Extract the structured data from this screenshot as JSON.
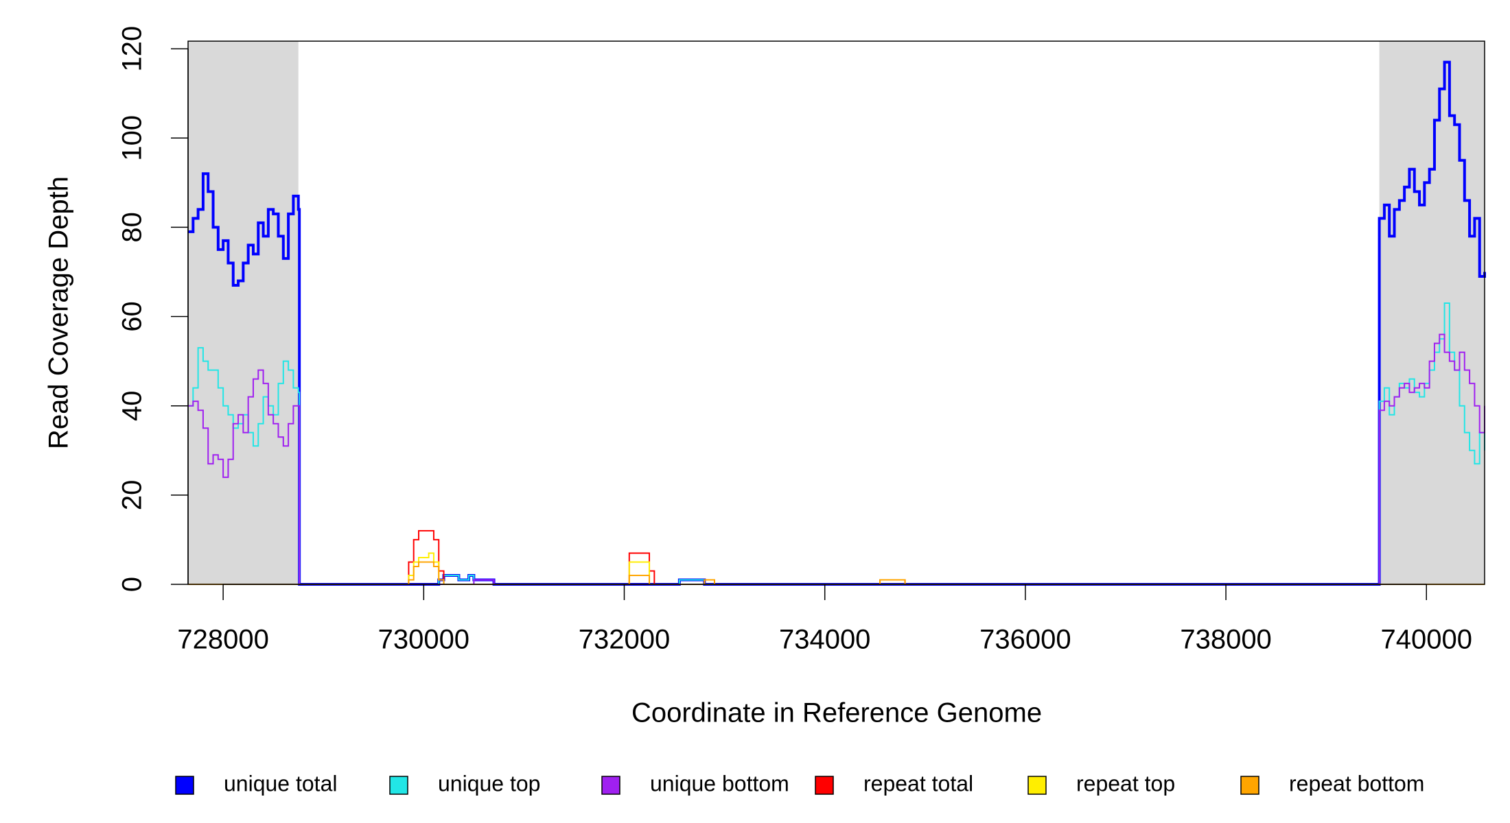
{
  "chart_data": {
    "type": "line",
    "step": "post",
    "x_label": "Coordinate in Reference Genome",
    "y_label": "Read Coverage Depth",
    "xlim": [
      727650,
      740580
    ],
    "ylim": [
      0,
      121.7
    ],
    "xticks": [
      728000,
      730000,
      732000,
      734000,
      736000,
      738000,
      740000
    ],
    "yticks": [
      0,
      20,
      40,
      60,
      80,
      100,
      120
    ],
    "shaded_regions": [
      [
        727650,
        728750
      ],
      [
        739530,
        740580
      ]
    ],
    "shade_color": "#d9d9d9",
    "legend": "bottom",
    "x": [
      727650,
      727700,
      727750,
      727800,
      727850,
      727900,
      727950,
      728000,
      728050,
      728100,
      728150,
      728200,
      728250,
      728300,
      728350,
      728400,
      728450,
      728500,
      728550,
      728600,
      728650,
      728700,
      728750,
      728760,
      729800,
      729850,
      729900,
      729950,
      730050,
      730100,
      730150,
      730200,
      730350,
      730450,
      730500,
      730700,
      732000,
      732050,
      732250,
      732300,
      732550,
      732800,
      732900,
      734550,
      734800,
      739520,
      739530,
      739580,
      739630,
      739680,
      739730,
      739780,
      739830,
      739880,
      739930,
      739980,
      740030,
      740080,
      740130,
      740180,
      740230,
      740280,
      740330,
      740380,
      740430,
      740480,
      740530,
      740580
    ],
    "series": [
      {
        "name": "unique total",
        "color": "#0000ff",
        "values": [
          79,
          82,
          84,
          92,
          88,
          80,
          75,
          77,
          72,
          67,
          68,
          72,
          76,
          74,
          81,
          78,
          84,
          83,
          78,
          73,
          83,
          87,
          84,
          0,
          0,
          0,
          0,
          0,
          0,
          0,
          1,
          2,
          1,
          2,
          1,
          0,
          0,
          0,
          0,
          0,
          1,
          0,
          0,
          0,
          0,
          0,
          82,
          85,
          78,
          84,
          86,
          89,
          93,
          88,
          85,
          90,
          93,
          104,
          111,
          117,
          105,
          103,
          95,
          86,
          78,
          82,
          69,
          70
        ]
      },
      {
        "name": "unique top",
        "color": "#22e6e6",
        "values": [
          40,
          44,
          53,
          50,
          48,
          48,
          44,
          40,
          38,
          35,
          36,
          38,
          34,
          31,
          36,
          42,
          40,
          38,
          45,
          50,
          48,
          44,
          43,
          0,
          0,
          0,
          0,
          0,
          0,
          0,
          1,
          2,
          1,
          2,
          0,
          0,
          0,
          0,
          0,
          0,
          1,
          0,
          0,
          0,
          0,
          0,
          41,
          44,
          38,
          42,
          45,
          44,
          46,
          43,
          42,
          45,
          48,
          52,
          55,
          63,
          52,
          48,
          40,
          34,
          30,
          27,
          34,
          30
        ]
      },
      {
        "name": "unique bottom",
        "color": "#a020f0",
        "values": [
          40,
          41,
          39,
          35,
          27,
          29,
          28,
          24,
          28,
          36,
          38,
          34,
          42,
          46,
          48,
          45,
          38,
          36,
          33,
          31,
          36,
          40,
          40,
          0,
          0,
          0,
          0,
          0,
          0,
          0,
          0,
          0,
          0,
          0,
          1,
          0,
          0,
          0,
          0,
          0,
          0,
          0,
          0,
          0,
          0,
          0,
          39,
          41,
          40,
          42,
          44,
          45,
          43,
          44,
          45,
          44,
          50,
          54,
          56,
          52,
          50,
          48,
          52,
          48,
          45,
          40,
          34,
          40
        ]
      },
      {
        "name": "repeat total",
        "color": "#ff0000",
        "values": [
          0,
          0,
          0,
          0,
          0,
          0,
          0,
          0,
          0,
          0,
          0,
          0,
          0,
          0,
          0,
          0,
          0,
          0,
          0,
          0,
          0,
          0,
          0,
          0,
          0,
          5,
          10,
          12,
          12,
          10,
          3,
          0,
          0,
          0,
          0,
          0,
          0,
          7,
          3,
          0,
          0,
          1,
          0,
          1,
          0,
          0,
          0,
          0,
          0,
          0,
          0,
          0,
          0,
          0,
          0,
          0,
          0,
          0,
          0,
          0,
          0,
          0,
          0,
          0,
          0,
          0,
          0,
          0
        ]
      },
      {
        "name": "repeat top",
        "color": "#ffee00",
        "values": [
          0,
          0,
          0,
          0,
          0,
          0,
          0,
          0,
          0,
          0,
          0,
          0,
          0,
          0,
          0,
          0,
          0,
          0,
          0,
          0,
          0,
          0,
          0,
          0,
          0,
          2,
          5,
          6,
          7,
          5,
          1,
          0,
          0,
          0,
          0,
          0,
          0,
          5,
          0,
          0,
          0,
          0,
          0,
          0,
          0,
          0,
          0,
          0,
          0,
          0,
          0,
          0,
          0,
          0,
          0,
          0,
          0,
          0,
          0,
          0,
          0,
          0,
          0,
          0,
          0,
          0,
          0,
          0
        ]
      },
      {
        "name": "repeat bottom",
        "color": "#ffa500",
        "values": [
          0,
          0,
          0,
          0,
          0,
          0,
          0,
          0,
          0,
          0,
          0,
          0,
          0,
          0,
          0,
          0,
          0,
          0,
          0,
          0,
          0,
          0,
          0,
          0,
          0,
          1,
          4,
          5,
          5,
          4,
          1,
          0,
          0,
          0,
          0,
          0,
          0,
          2,
          0,
          0,
          0,
          1,
          0,
          1,
          0,
          0,
          0,
          0,
          0,
          0,
          0,
          0,
          0,
          0,
          0,
          0,
          0,
          0,
          0,
          0,
          0,
          0,
          0,
          0,
          0,
          0,
          0,
          0
        ]
      }
    ]
  }
}
